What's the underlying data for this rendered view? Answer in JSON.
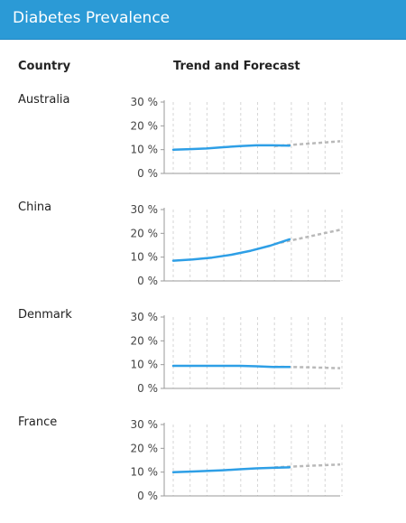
{
  "header": {
    "title": "Diabetes Prevalence"
  },
  "columns": {
    "country": "Country",
    "trend": "Trend and Forecast"
  },
  "colors": {
    "header": "#2b9ad6",
    "actual": "#2e9fe6",
    "forecast": "#b9b9b9",
    "grid": "#d6d6d6"
  },
  "chart_data": {
    "type": "line",
    "y_ticks": [
      "30 %",
      "20 %",
      "10 %",
      "0 %"
    ],
    "ylim": [
      0,
      30
    ],
    "grid": true,
    "rows": [
      {
        "country": "Australia",
        "actual": [
          10,
          10.2,
          10.5,
          11,
          11.5,
          11.8,
          11.8,
          11.7
        ],
        "forecast": [
          11.5,
          12.0,
          12.5,
          13.0,
          13.5
        ]
      },
      {
        "country": "China",
        "actual": [
          8.5,
          9,
          9.8,
          11,
          12.7,
          14.8,
          17.5
        ],
        "forecast": [
          15.5,
          17.0,
          18.5,
          20.0,
          21.5
        ]
      },
      {
        "country": "Denmark",
        "actual": [
          9.5,
          9.5,
          9.5,
          9.5,
          9.5,
          9.3,
          9,
          9
        ],
        "forecast": [
          9.1,
          9.0,
          8.9,
          8.7,
          8.5
        ]
      },
      {
        "country": "France",
        "actual": [
          10,
          10.2,
          10.5,
          10.8,
          11.2,
          11.6,
          11.8,
          12
        ],
        "forecast": [
          12.0,
          12.3,
          12.6,
          12.9,
          13.2
        ]
      }
    ]
  }
}
